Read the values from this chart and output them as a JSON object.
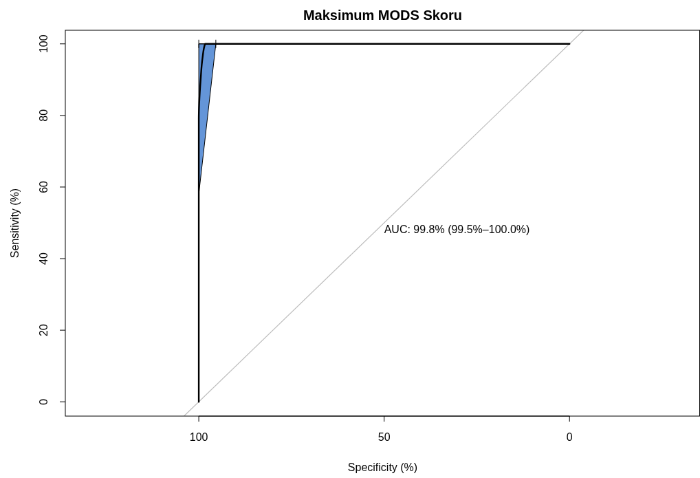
{
  "chart_data": {
    "type": "line",
    "title": "Maksimum MODS Skoru",
    "xlabel": "Specificity (%)",
    "ylabel": "Sensitivity (%)",
    "xlim": [
      136,
      -35.2
    ],
    "ylim": [
      -4,
      103.8
    ],
    "xticks": [
      100,
      50,
      0
    ],
    "yticks": [
      0,
      20,
      40,
      60,
      80,
      100
    ],
    "series": [
      {
        "type": "area",
        "color": "#6495d8",
        "x": [
          100,
          95.4
        ],
        "values": [
          58,
          100
        ]
      },
      {
        "type": "line",
        "color": "#bebebe",
        "x": [
          103.9,
          -3.8
        ],
        "values": [
          -3.9,
          103.8
        ]
      },
      {
        "color": "#000000",
        "x": [
          100,
          100,
          99.5,
          99,
          98.3,
          0
        ],
        "values": [
          0,
          79,
          90,
          96,
          100,
          100
        ],
        "xerrors": [
          null,
          null,
          null,
          null,
          [
            95.4,
            100
          ],
          null
        ]
      }
    ],
    "annotations": [
      "AUC: 99.8% (99.5%–100.0%)"
    ],
    "grid": false
  }
}
